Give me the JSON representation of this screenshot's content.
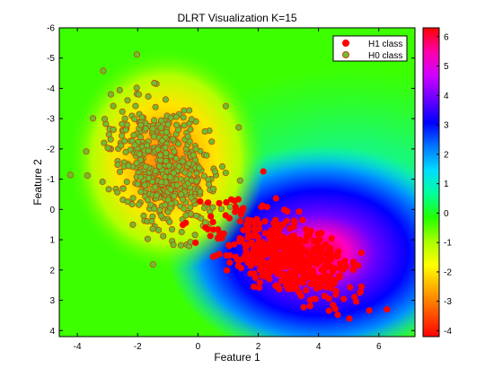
{
  "chart_data": {
    "type": "scatter",
    "title": "DLRT Visualization K=15",
    "xlabel": "Feature 1",
    "ylabel": "Feature 2",
    "xlim": [
      -4.6,
      7.2
    ],
    "ylim": [
      -6,
      4.2
    ],
    "y_axis_reversed": true,
    "x_ticks": [
      -4,
      -2,
      0,
      2,
      4,
      6
    ],
    "y_ticks": [
      -6,
      -5,
      -4,
      -3,
      -2,
      -1,
      0,
      1,
      2,
      3,
      4
    ],
    "grid": false,
    "legend_position": "top-right",
    "series": [
      {
        "name": "H1 class",
        "color": "#ff0000",
        "edge_color": "#ff0000",
        "approx_center": [
          2.8,
          1.5
        ],
        "approx_spread": [
          1.1,
          0.75
        ],
        "approx_count": 500
      },
      {
        "name": "H0 class",
        "color": "#6dbd32",
        "edge_color": "#c24a10",
        "approx_center": [
          -1.1,
          -1.4
        ],
        "approx_spread": [
          0.9,
          1.05
        ],
        "approx_count": 500
      }
    ],
    "background": {
      "type": "heatmap",
      "description_colormap": "hsv",
      "hot_region_center": [
        3.0,
        1.6
      ],
      "cold_region_center": [
        -1.2,
        -2.3
      ]
    },
    "colorbar": {
      "ticks": [
        6,
        5,
        4,
        3,
        2,
        1,
        0,
        -1,
        -2,
        -3,
        -4
      ],
      "range": [
        -4.2,
        6.3
      ],
      "colors_top_to_bottom": [
        "#ff0000",
        "#ff00aa",
        "#d000ff",
        "#6a00ff",
        "#0000ff",
        "#0077ff",
        "#00ddff",
        "#00ff99",
        "#22ff00",
        "#aaff00",
        "#ffff00",
        "#ffaa00",
        "#ff5500",
        "#ff0000"
      ]
    }
  }
}
